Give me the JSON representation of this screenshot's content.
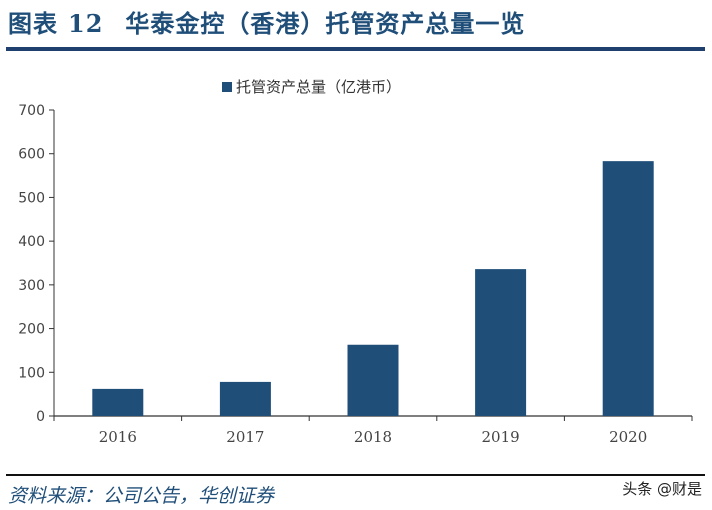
{
  "figure": {
    "label": "图表",
    "number": "12",
    "title": "华泰金控（香港）托管资产总量一览"
  },
  "legend": {
    "series_label": "托管资产总量（亿港币）",
    "color": "#1f4e79"
  },
  "source": "资料来源：公司公告，华创证券",
  "watermark": "头条 @财是",
  "chart_data": {
    "type": "bar",
    "title": "华泰金控（香港）托管资产总量一览",
    "xlabel": "",
    "ylabel": "",
    "categories": [
      "2016",
      "2017",
      "2018",
      "2019",
      "2020"
    ],
    "series": [
      {
        "name": "托管资产总量（亿港币）",
        "values": [
          62,
          78,
          163,
          336,
          583
        ],
        "color": "#1f4e79"
      }
    ],
    "ylim": [
      0,
      700
    ],
    "yticks": [
      0,
      100,
      200,
      300,
      400,
      500,
      600,
      700
    ],
    "grid": false,
    "legend_position": "top"
  }
}
